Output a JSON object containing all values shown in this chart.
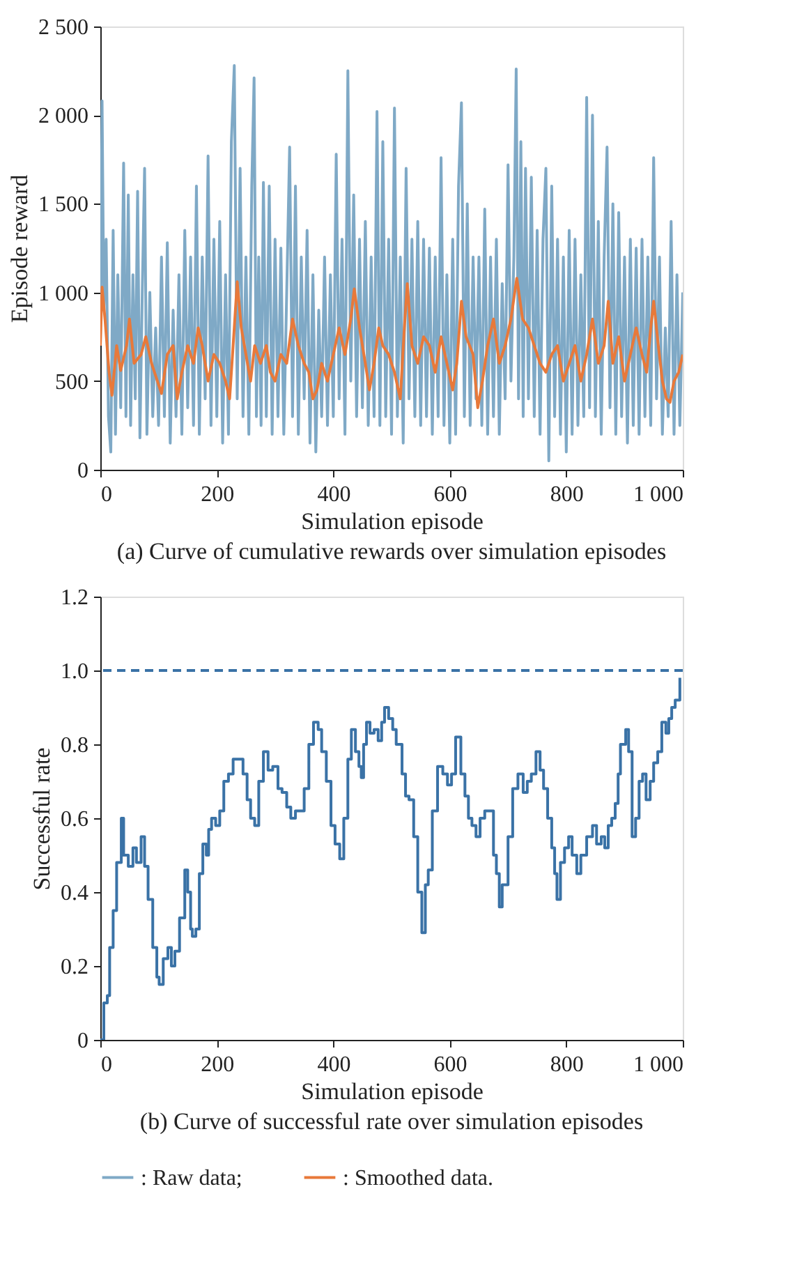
{
  "chart_data": [
    {
      "type": "line",
      "title": "(a) Curve of cumulative rewards over simulation episodes",
      "xlabel": "Simulation episode",
      "ylabel": "Episode reward",
      "xlim": [
        0,
        1000
      ],
      "ylim": [
        0,
        2500
      ],
      "xticks": [
        0,
        200,
        400,
        600,
        800,
        {
          "value": 1000,
          "label": "1 000"
        }
      ],
      "yticks": [
        0,
        500,
        {
          "value": 1000,
          "label": "1 000"
        },
        {
          "value": 1500,
          "label": "1 500"
        },
        {
          "value": 2000,
          "label": "2 000"
        },
        {
          "value": 2500,
          "label": "2 500"
        }
      ],
      "grid": false,
      "legend": "bottom",
      "series": [
        {
          "name": ": Raw data;",
          "color": "#7fa9c6",
          "x": [
            0,
            3,
            6,
            10,
            14,
            18,
            22,
            26,
            30,
            35,
            40,
            44,
            48,
            52,
            56,
            60,
            64,
            68,
            72,
            76,
            80,
            85,
            90,
            95,
            100,
            105,
            110,
            115,
            120,
            125,
            130,
            135,
            140,
            145,
            150,
            155,
            160,
            165,
            170,
            175,
            180,
            185,
            190,
            195,
            200,
            205,
            210,
            215,
            220,
            225,
            230,
            235,
            240,
            245,
            250,
            255,
            260,
            264,
            268,
            272,
            276,
            280,
            285,
            290,
            295,
            300,
            305,
            310,
            315,
            320,
            325,
            330,
            335,
            340,
            345,
            350,
            355,
            360,
            365,
            370,
            375,
            380,
            385,
            390,
            395,
            400,
            405,
            410,
            415,
            420,
            425,
            430,
            435,
            440,
            445,
            450,
            455,
            460,
            465,
            470,
            475,
            480,
            485,
            490,
            495,
            500,
            505,
            510,
            515,
            520,
            525,
            530,
            535,
            540,
            545,
            550,
            555,
            560,
            565,
            570,
            575,
            580,
            585,
            590,
            595,
            600,
            605,
            610,
            615,
            620,
            625,
            630,
            635,
            640,
            645,
            650,
            655,
            660,
            665,
            670,
            675,
            680,
            685,
            690,
            695,
            700,
            705,
            710,
            714,
            718,
            722,
            726,
            730,
            735,
            740,
            745,
            750,
            755,
            760,
            765,
            770,
            775,
            780,
            785,
            790,
            795,
            800,
            805,
            810,
            815,
            820,
            825,
            830,
            835,
            840,
            845,
            850,
            855,
            860,
            865,
            870,
            875,
            880,
            885,
            890,
            895,
            900,
            905,
            910,
            915,
            920,
            925,
            930,
            935,
            940,
            945,
            950,
            955,
            960,
            965,
            970,
            975,
            980,
            985,
            990,
            995,
            1000
          ],
          "values": [
            700,
            2080,
            900,
            1300,
            300,
            100,
            1350,
            200,
            1100,
            350,
            1730,
            300,
            1550,
            250,
            1100,
            400,
            1570,
            180,
            1000,
            1700,
            200,
            1000,
            300,
            800,
            250,
            1200,
            300,
            1280,
            150,
            900,
            300,
            1100,
            200,
            1350,
            350,
            1200,
            250,
            1600,
            200,
            1200,
            400,
            1770,
            250,
            1300,
            300,
            1400,
            150,
            1100,
            200,
            1850,
            2280,
            400,
            1700,
            300,
            1200,
            200,
            1600,
            2210,
            300,
            1200,
            250,
            1620,
            300,
            1600,
            200,
            1300,
            300,
            1250,
            200,
            1000,
            1820,
            300,
            1600,
            200,
            1200,
            400,
            1350,
            150,
            1100,
            100,
            900,
            300,
            1200,
            250,
            1100,
            300,
            1780,
            400,
            1300,
            200,
            2250,
            500,
            1550,
            300,
            1300,
            350,
            1400,
            250,
            1200,
            300,
            2020,
            250,
            1850,
            300,
            1300,
            200,
            2040,
            300,
            1200,
            150,
            1700,
            400,
            1300,
            300,
            1400,
            250,
            1300,
            300,
            1250,
            200,
            1200,
            300,
            1760,
            250,
            1100,
            150,
            1300,
            200,
            1600,
            2070,
            300,
            1500,
            250,
            1200,
            400,
            1200,
            250,
            1470,
            200,
            1200,
            300,
            1300,
            200,
            1050,
            400,
            1720,
            500,
            1200,
            2260,
            400,
            1850,
            300,
            1700,
            400,
            1650,
            300,
            1350,
            200,
            1300,
            1700,
            50,
            1600,
            300,
            1300,
            200,
            1200,
            100,
            1350,
            200,
            1300,
            250,
            1100,
            300,
            2100,
            350,
            2000,
            300,
            1400,
            200,
            1200,
            1820,
            350,
            1500,
            200,
            1450,
            300,
            1200,
            150,
            1300,
            250,
            1250,
            200,
            1300,
            300,
            1200,
            250,
            1760,
            400,
            1200,
            200,
            800,
            300,
            1400,
            200,
            1100,
            250,
            1000
          ]
        },
        {
          "name": ": Smoothed data.",
          "color": "#e8793a",
          "x": [
            0,
            3,
            8,
            15,
            20,
            28,
            35,
            45,
            50,
            58,
            70,
            78,
            88,
            98,
            105,
            115,
            125,
            132,
            140,
            150,
            160,
            168,
            175,
            185,
            195,
            205,
            215,
            222,
            228,
            235,
            242,
            250,
            258,
            265,
            275,
            285,
            292,
            300,
            310,
            320,
            330,
            340,
            350,
            358,
            365,
            372,
            380,
            390,
            400,
            410,
            420,
            430,
            436,
            445,
            455,
            462,
            470,
            478,
            485,
            495,
            505,
            515,
            522,
            527,
            535,
            545,
            555,
            565,
            575,
            585,
            595,
            605,
            612,
            620,
            628,
            640,
            648,
            656,
            665,
            675,
            685,
            695,
            705,
            715,
            725,
            735,
            745,
            755,
            765,
            775,
            785,
            795,
            805,
            815,
            825,
            835,
            845,
            855,
            865,
            872,
            880,
            890,
            900,
            910,
            920,
            930,
            938,
            945,
            950,
            958,
            965,
            972,
            978,
            985,
            993,
            1000
          ],
          "values": [
            700,
            1030,
            850,
            550,
            420,
            700,
            560,
            700,
            850,
            600,
            650,
            750,
            600,
            500,
            430,
            650,
            700,
            400,
            550,
            700,
            600,
            800,
            700,
            500,
            650,
            600,
            500,
            400,
            700,
            1060,
            800,
            650,
            500,
            700,
            600,
            700,
            550,
            500,
            650,
            600,
            850,
            700,
            600,
            550,
            400,
            450,
            600,
            500,
            650,
            800,
            650,
            850,
            1020,
            800,
            600,
            450,
            600,
            800,
            700,
            650,
            550,
            400,
            800,
            1050,
            700,
            600,
            750,
            700,
            550,
            750,
            600,
            450,
            600,
            950,
            750,
            650,
            350,
            500,
            700,
            850,
            600,
            700,
            850,
            1080,
            850,
            800,
            700,
            600,
            550,
            650,
            700,
            500,
            600,
            700,
            500,
            650,
            850,
            600,
            700,
            950,
            600,
            750,
            500,
            650,
            800,
            650,
            550,
            800,
            950,
            700,
            500,
            400,
            380,
            500,
            550,
            650
          ]
        }
      ]
    },
    {
      "type": "step",
      "title": "(b) Curve of successful rate over simulation episodes",
      "xlabel": "Simulation episode",
      "ylabel": "Successful rate",
      "xlim": [
        0,
        1000
      ],
      "ylim": [
        0,
        1.2
      ],
      "xticks": [
        0,
        200,
        400,
        600,
        800,
        {
          "value": 1000,
          "label": "1 000"
        }
      ],
      "yticks": [
        0,
        0.2,
        0.4,
        0.6,
        0.8,
        {
          "value": 1,
          "label": "1.0"
        },
        1.2
      ],
      "grid": false,
      "ref_lines": [
        {
          "axis": "y",
          "value": 1,
          "color": "#3a72a6",
          "line_style": "dashed"
        }
      ],
      "series": [
        {
          "color": "#3a72a6",
          "x": [
            0,
            5,
            6,
            12,
            16,
            22,
            28,
            36,
            40,
            48,
            56,
            62,
            70,
            76,
            82,
            90,
            97,
            101,
            108,
            116,
            122,
            128,
            136,
            145,
            150,
            155,
            158,
            164,
            170,
            176,
            182,
            186,
            191,
            198,
            205,
            212,
            220,
            228,
            238,
            245,
            252,
            258,
            265,
            272,
            280,
            288,
            296,
            305,
            312,
            320,
            327,
            335,
            342,
            350,
            358,
            366,
            374,
            380,
            388,
            396,
            403,
            411,
            418,
            425,
            431,
            438,
            444,
            448,
            452,
            457,
            463,
            470,
            477,
            483,
            488,
            495,
            502,
            508,
            512,
            518,
            524,
            530,
            538,
            545,
            552,
            558,
            563,
            570,
            579,
            588,
            596,
            603,
            610,
            619,
            626,
            632,
            638,
            645,
            652,
            660,
            667,
            675,
            680,
            685,
            690,
            694,
            700,
            708,
            717,
            726,
            733,
            740,
            748,
            755,
            761,
            768,
            775,
            780,
            784,
            790,
            797,
            804,
            810,
            818,
            825,
            835,
            845,
            852,
            860,
            866,
            872,
            878,
            884,
            889,
            893,
            902,
            907,
            913,
            919,
            925,
            931,
            937,
            944,
            950,
            957,
            964,
            971,
            976,
            981,
            987,
            995
          ],
          "values": [
            0,
            0,
            0.1,
            0.12,
            0.25,
            0.35,
            0.48,
            0.6,
            0.5,
            0.47,
            0.52,
            0.48,
            0.55,
            0.47,
            0.38,
            0.25,
            0.17,
            0.15,
            0.22,
            0.25,
            0.2,
            0.24,
            0.33,
            0.46,
            0.4,
            0.3,
            0.28,
            0.3,
            0.45,
            0.53,
            0.5,
            0.57,
            0.6,
            0.58,
            0.62,
            0.7,
            0.72,
            0.76,
            0.76,
            0.72,
            0.65,
            0.6,
            0.58,
            0.7,
            0.78,
            0.73,
            0.74,
            0.68,
            0.67,
            0.63,
            0.6,
            0.62,
            0.62,
            0.68,
            0.8,
            0.86,
            0.84,
            0.78,
            0.7,
            0.58,
            0.53,
            0.49,
            0.6,
            0.76,
            0.84,
            0.78,
            0.74,
            0.71,
            0.8,
            0.86,
            0.83,
            0.84,
            0.81,
            0.86,
            0.9,
            0.87,
            0.84,
            0.8,
            0.8,
            0.72,
            0.66,
            0.65,
            0.55,
            0.4,
            0.29,
            0.42,
            0.46,
            0.62,
            0.74,
            0.72,
            0.69,
            0.72,
            0.82,
            0.72,
            0.66,
            0.6,
            0.58,
            0.55,
            0.6,
            0.62,
            0.62,
            0.5,
            0.45,
            0.36,
            0.42,
            0.42,
            0.55,
            0.68,
            0.72,
            0.67,
            0.7,
            0.72,
            0.78,
            0.73,
            0.68,
            0.6,
            0.52,
            0.45,
            0.38,
            0.48,
            0.52,
            0.55,
            0.5,
            0.45,
            0.5,
            0.55,
            0.58,
            0.53,
            0.55,
            0.52,
            0.58,
            0.6,
            0.64,
            0.72,
            0.8,
            0.84,
            0.78,
            0.55,
            0.6,
            0.7,
            0.72,
            0.65,
            0.7,
            0.75,
            0.78,
            0.86,
            0.83,
            0.87,
            0.9,
            0.92,
            0.98
          ]
        }
      ]
    }
  ]
}
